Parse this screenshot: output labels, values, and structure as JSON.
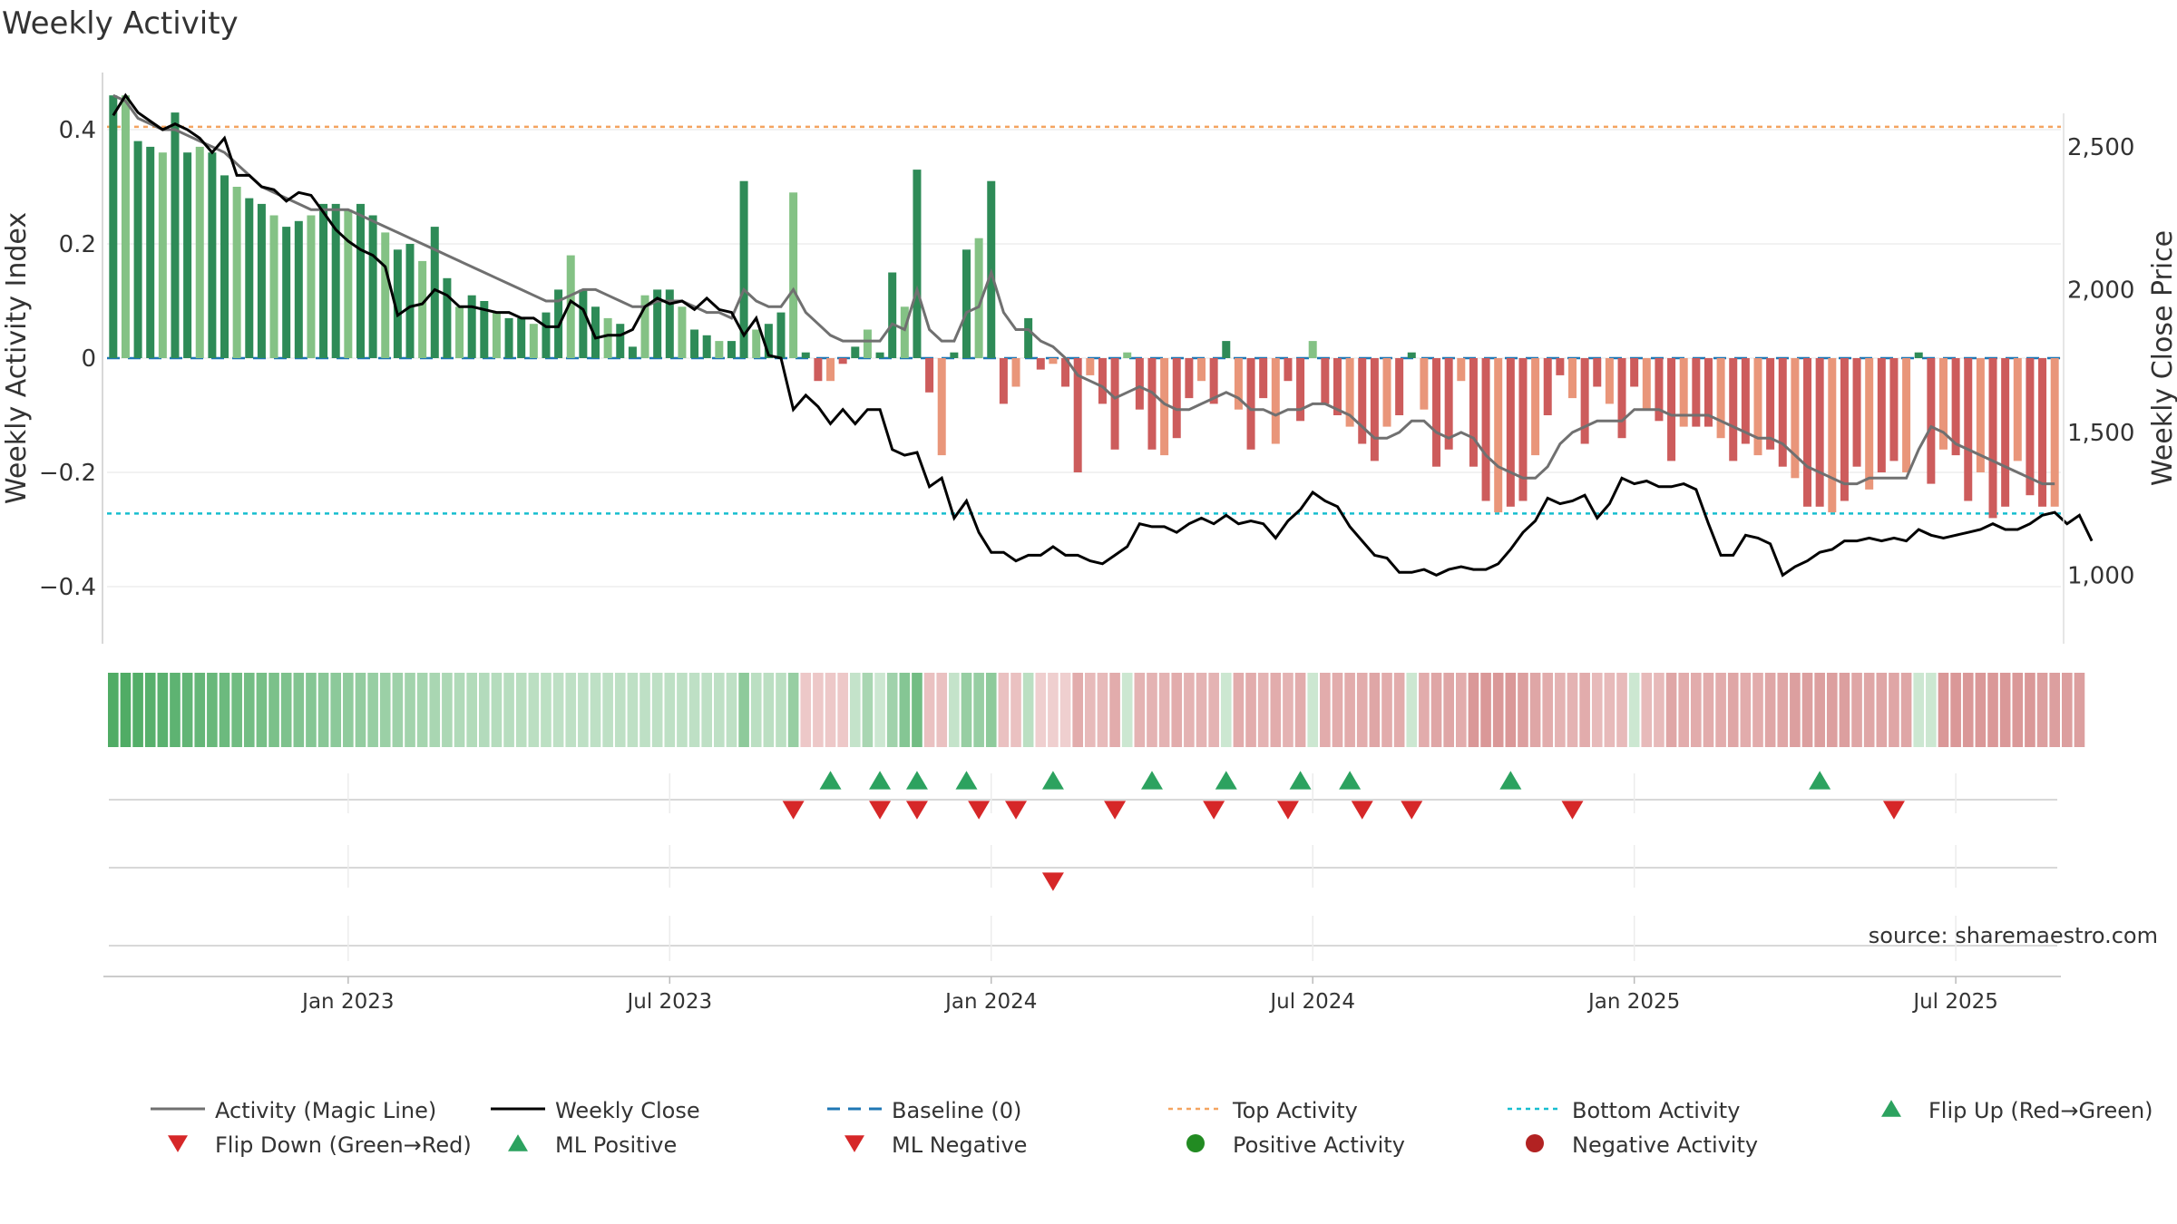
{
  "chart_data": {
    "type": "bar",
    "title": "Weekly Activity",
    "ylabel_left": "Weekly Activity Index",
    "ylabel_right": "Weekly Close Price",
    "ylim_left": [
      -0.5,
      0.5
    ],
    "ylim_right": [
      760,
      2760
    ],
    "xlim": [
      "2022-09-05",
      "2025-09-08"
    ],
    "left_ticks": [
      {
        "value": 0.4,
        "label": "0.4"
      },
      {
        "value": 0.2,
        "label": "0.2"
      },
      {
        "value": 0,
        "label": "0"
      },
      {
        "value": -0.2,
        "label": "−0.2"
      },
      {
        "value": -0.4,
        "label": "−0.4"
      }
    ],
    "right_ticks": [
      {
        "value": 2500,
        "label": "2,500"
      },
      {
        "value": 2000,
        "label": "2,000"
      },
      {
        "value": 1500,
        "label": "1,500"
      },
      {
        "value": 1000,
        "label": "1,000"
      }
    ],
    "x_ticks": [
      {
        "week": 19,
        "label": "Jan 2023"
      },
      {
        "week": 45,
        "label": "Jul 2023"
      },
      {
        "week": 71,
        "label": "Jan 2024"
      },
      {
        "week": 97,
        "label": "Jul 2024"
      },
      {
        "week": 123,
        "label": "Jan 2025"
      },
      {
        "week": 149,
        "label": "Jul 2025"
      }
    ],
    "top_activity": 0.405,
    "bottom_activity": -0.272,
    "first_week": "2022-09-05",
    "activity": [
      0.46,
      0.46,
      0.38,
      0.37,
      0.36,
      0.43,
      0.36,
      0.37,
      0.36,
      0.32,
      0.3,
      0.28,
      0.27,
      0.25,
      0.23,
      0.24,
      0.25,
      0.27,
      0.27,
      0.26,
      0.27,
      0.25,
      0.22,
      0.19,
      0.2,
      0.17,
      0.23,
      0.14,
      0.09,
      0.11,
      0.1,
      0.08,
      0.07,
      0.07,
      0.06,
      0.08,
      0.12,
      0.18,
      0.12,
      0.09,
      0.07,
      0.06,
      0.02,
      0.11,
      0.12,
      0.12,
      0.09,
      0.05,
      0.04,
      0.03,
      0.03,
      0.31,
      0.05,
      0.06,
      0.08,
      0.29,
      0.01,
      -0.04,
      -0.04,
      -0.01,
      0.02,
      0.05,
      0.01,
      0.15,
      0.09,
      0.33,
      -0.06,
      -0.17,
      0.01,
      0.19,
      0.21,
      0.31,
      -0.08,
      -0.05,
      0.07,
      -0.02,
      -0.01,
      -0.05,
      -0.2,
      -0.03,
      -0.08,
      -0.16,
      0.01,
      -0.09,
      -0.16,
      -0.17,
      -0.14,
      -0.07,
      -0.04,
      -0.08,
      0.03,
      -0.09,
      -0.16,
      -0.07,
      -0.15,
      -0.04,
      -0.11,
      0.03,
      -0.08,
      -0.1,
      -0.12,
      -0.15,
      -0.18,
      -0.12,
      -0.1,
      0.01,
      -0.09,
      -0.19,
      -0.16,
      -0.04,
      -0.19,
      -0.25,
      -0.27,
      -0.26,
      -0.25,
      -0.17,
      -0.1,
      -0.03,
      -0.07,
      -0.15,
      -0.05,
      -0.08,
      -0.14,
      -0.05,
      -0.09,
      -0.11,
      -0.18,
      -0.12,
      -0.12,
      -0.12,
      -0.14,
      -0.18,
      -0.15,
      -0.17,
      -0.16,
      -0.19,
      -0.21,
      -0.26,
      -0.26,
      -0.27,
      -0.25,
      -0.19,
      -0.23,
      -0.2,
      -0.18,
      -0.2,
      0.01,
      -0.22,
      -0.16,
      -0.17,
      -0.25,
      -0.2,
      -0.28,
      -0.26,
      -0.18,
      -0.24,
      -0.26,
      -0.26
    ],
    "magic_line": [
      0.46,
      0.45,
      0.42,
      0.41,
      0.4,
      0.4,
      0.39,
      0.38,
      0.37,
      0.36,
      0.34,
      0.32,
      0.3,
      0.29,
      0.28,
      0.27,
      0.26,
      0.26,
      0.26,
      0.26,
      0.25,
      0.24,
      0.23,
      0.22,
      0.21,
      0.2,
      0.19,
      0.18,
      0.17,
      0.16,
      0.15,
      0.14,
      0.13,
      0.12,
      0.11,
      0.1,
      0.1,
      0.11,
      0.12,
      0.12,
      0.11,
      0.1,
      0.09,
      0.09,
      0.1,
      0.1,
      0.1,
      0.09,
      0.08,
      0.08,
      0.07,
      0.12,
      0.1,
      0.09,
      0.09,
      0.12,
      0.08,
      0.06,
      0.04,
      0.03,
      0.03,
      0.03,
      0.03,
      0.06,
      0.05,
      0.12,
      0.05,
      0.03,
      0.03,
      0.08,
      0.09,
      0.15,
      0.08,
      0.05,
      0.05,
      0.03,
      0.02,
      0.0,
      -0.03,
      -0.04,
      -0.05,
      -0.07,
      -0.06,
      -0.05,
      -0.06,
      -0.08,
      -0.09,
      -0.09,
      -0.08,
      -0.07,
      -0.06,
      -0.07,
      -0.09,
      -0.09,
      -0.1,
      -0.09,
      -0.09,
      -0.08,
      -0.08,
      -0.09,
      -0.1,
      -0.12,
      -0.14,
      -0.14,
      -0.13,
      -0.11,
      -0.11,
      -0.13,
      -0.14,
      -0.13,
      -0.14,
      -0.17,
      -0.19,
      -0.2,
      -0.21,
      -0.21,
      -0.19,
      -0.15,
      -0.13,
      -0.12,
      -0.11,
      -0.11,
      -0.11,
      -0.09,
      -0.09,
      -0.09,
      -0.1,
      -0.1,
      -0.1,
      -0.1,
      -0.11,
      -0.12,
      -0.13,
      -0.14,
      -0.14,
      -0.15,
      -0.17,
      -0.19,
      -0.2,
      -0.21,
      -0.22,
      -0.22,
      -0.21,
      -0.21,
      -0.21,
      -0.21,
      -0.16,
      -0.12,
      -0.13,
      -0.15,
      -0.16,
      -0.17,
      -0.18,
      -0.19,
      -0.2,
      -0.21,
      -0.22,
      -0.22
    ],
    "close": [
      2610,
      2680,
      2620,
      2590,
      2560,
      2580,
      2560,
      2530,
      2480,
      2530,
      2400,
      2400,
      2360,
      2350,
      2310,
      2340,
      2330,
      2270,
      2210,
      2170,
      2140,
      2120,
      2080,
      1910,
      1940,
      1950,
      2000,
      1980,
      1940,
      1940,
      1930,
      1920,
      1920,
      1900,
      1900,
      1870,
      1870,
      1960,
      1930,
      1830,
      1840,
      1840,
      1860,
      1940,
      1970,
      1950,
      1960,
      1930,
      1970,
      1930,
      1920,
      1840,
      1900,
      1770,
      1760,
      1580,
      1630,
      1590,
      1530,
      1580,
      1530,
      1580,
      1580,
      1440,
      1420,
      1430,
      1310,
      1340,
      1200,
      1260,
      1150,
      1080,
      1080,
      1050,
      1070,
      1070,
      1100,
      1070,
      1070,
      1050,
      1040,
      1070,
      1100,
      1180,
      1170,
      1170,
      1150,
      1180,
      1200,
      1180,
      1210,
      1180,
      1190,
      1180,
      1130,
      1190,
      1230,
      1290,
      1260,
      1240,
      1170,
      1120,
      1070,
      1060,
      1010,
      1010,
      1020,
      1000,
      1020,
      1030,
      1020,
      1020,
      1040,
      1090,
      1150,
      1190,
      1270,
      1250,
      1260,
      1280,
      1200,
      1250,
      1340,
      1320,
      1330,
      1310,
      1310,
      1320,
      1300,
      1180,
      1070,
      1070,
      1140,
      1130,
      1110,
      1000,
      1030,
      1050,
      1080,
      1090,
      1120,
      1120,
      1130,
      1120,
      1130,
      1120,
      1160,
      1140,
      1130,
      1140,
      1150,
      1160,
      1180,
      1160,
      1160,
      1180,
      1210,
      1220,
      1180,
      1210,
      1120
    ],
    "colorbar_levels": [
      0.9,
      0.9,
      0.88,
      0.86,
      0.84,
      0.82,
      0.8,
      0.78,
      0.76,
      0.74,
      0.72,
      0.7,
      0.68,
      0.66,
      0.64,
      0.62,
      0.6,
      0.58,
      0.56,
      0.54,
      0.52,
      0.5,
      0.48,
      0.46,
      0.44,
      0.42,
      0.4,
      0.38,
      0.36,
      0.35,
      0.34,
      0.33,
      0.32,
      0.31,
      0.3,
      0.29,
      0.28,
      0.28,
      0.28,
      0.28,
      0.28,
      0.28,
      0.28,
      0.28,
      0.28,
      0.28,
      0.28,
      0.28,
      0.28,
      0.28,
      0.28,
      0.55,
      0.3,
      0.3,
      0.3,
      0.5,
      -0.25,
      -0.25,
      -0.25,
      -0.25,
      0.25,
      0.4,
      0.2,
      0.45,
      0.6,
      0.7,
      -0.3,
      -0.3,
      0.25,
      0.5,
      0.5,
      0.55,
      -0.3,
      -0.3,
      0.3,
      -0.2,
      -0.2,
      -0.2,
      -0.45,
      -0.35,
      -0.35,
      -0.45,
      0.2,
      -0.4,
      -0.4,
      -0.4,
      -0.45,
      -0.4,
      -0.4,
      -0.4,
      0.2,
      -0.45,
      -0.45,
      -0.4,
      -0.45,
      -0.4,
      -0.45,
      0.2,
      -0.45,
      -0.45,
      -0.45,
      -0.45,
      -0.5,
      -0.45,
      -0.45,
      0.2,
      -0.45,
      -0.5,
      -0.5,
      -0.45,
      -0.6,
      -0.6,
      -0.6,
      -0.6,
      -0.55,
      -0.5,
      -0.45,
      -0.4,
      -0.4,
      -0.45,
      -0.35,
      -0.35,
      -0.35,
      0.2,
      -0.35,
      -0.35,
      -0.5,
      -0.45,
      -0.45,
      -0.45,
      -0.45,
      -0.5,
      -0.45,
      -0.45,
      -0.5,
      -0.5,
      -0.55,
      -0.55,
      -0.55,
      -0.55,
      -0.55,
      -0.5,
      -0.5,
      -0.5,
      -0.5,
      -0.5,
      0.2,
      0.2,
      -0.6,
      -0.6,
      -0.6,
      -0.6,
      -0.6,
      -0.6,
      -0.6,
      -0.6,
      -0.55,
      -0.55,
      -0.55,
      -0.55
    ],
    "flip_up_weeks": [
      58,
      62,
      65,
      69,
      76,
      84,
      90,
      96,
      100,
      113,
      138
    ],
    "flip_down_weeks": [
      55,
      62,
      65,
      70,
      73,
      81,
      89,
      95,
      101,
      105,
      118,
      144
    ],
    "ml_negative_weeks": [
      76
    ],
    "annotation": "source: sharemaestro.com",
    "legend": [
      {
        "key": "magic",
        "label": "Activity (Magic Line)"
      },
      {
        "key": "close",
        "label": "Weekly Close"
      },
      {
        "key": "baseline",
        "label": "Baseline (0)"
      },
      {
        "key": "top",
        "label": "Top Activity"
      },
      {
        "key": "bottom",
        "label": "Bottom Activity"
      },
      {
        "key": "flipup",
        "label": "Flip Up (Red→Green)"
      },
      {
        "key": "flipdown",
        "label": "Flip Down (Green→Red)"
      },
      {
        "key": "mlpos",
        "label": "ML Positive"
      },
      {
        "key": "mlneg",
        "label": "ML Negative"
      },
      {
        "key": "posact",
        "label": "Positive Activity"
      },
      {
        "key": "negact",
        "label": "Negative Activity"
      }
    ]
  },
  "colors": {
    "pos_dark": "#2e8b57",
    "pos_light": "#84c285",
    "neg_dark": "#cd5c5c",
    "neg_light": "#e9967a",
    "magic": "#707070",
    "close": "#000000",
    "baseline": "#1f77b4",
    "top": "#f4a460",
    "bottom": "#17becf",
    "flip_up": "#2ca25f",
    "flip_down": "#d62728",
    "pos_dot": "#228b22",
    "neg_dot": "#b22222"
  }
}
